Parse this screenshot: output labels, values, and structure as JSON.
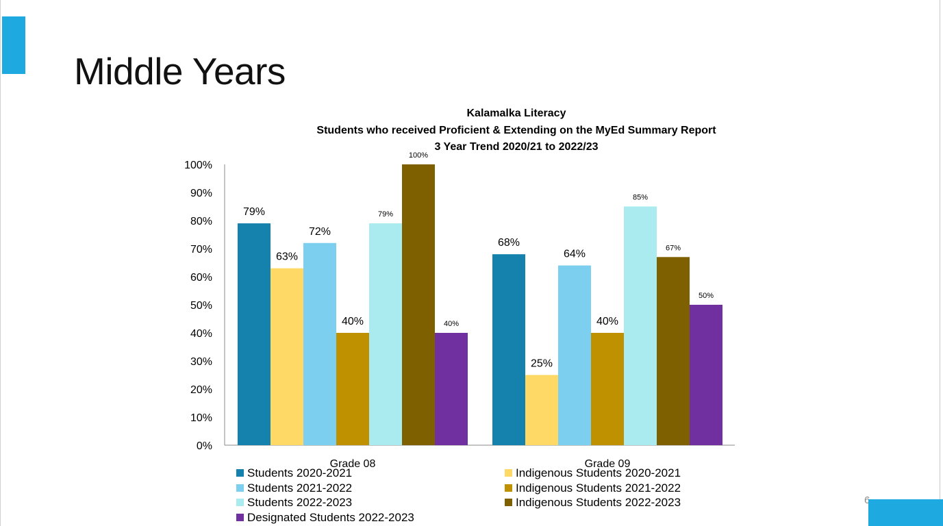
{
  "slide": {
    "title": "Middle Years",
    "page_number": "6",
    "accent_color": "#1fa9e1"
  },
  "chart_data": {
    "type": "bar",
    "title": [
      "Kalamalka Literacy",
      "Students who received Proficient & Extending on the MyEd Summary Report",
      "3 Year Trend 2020/21 to 2022/23"
    ],
    "xlabel": "",
    "ylabel": "",
    "ylim": [
      0,
      100
    ],
    "yticks": [
      "0%",
      "10%",
      "20%",
      "30%",
      "40%",
      "50%",
      "60%",
      "70%",
      "80%",
      "90%",
      "100%"
    ],
    "categories": [
      "Grade 08",
      "Grade 09"
    ],
    "series": [
      {
        "name": "Students 2020-2021",
        "color": "#1582ad",
        "values": [
          79,
          68
        ],
        "labels": [
          "79%",
          "68%"
        ],
        "label_size": "large"
      },
      {
        "name": "Indigenous Students 2020-2021",
        "color": "#fed966",
        "values": [
          63,
          25
        ],
        "labels": [
          "63%",
          "25%"
        ],
        "label_size": "large"
      },
      {
        "name": "Students 2021-2022",
        "color": "#7ccfef",
        "values": [
          72,
          64
        ],
        "labels": [
          "72%",
          "64%"
        ],
        "label_size": "large"
      },
      {
        "name": "Indigenous Students 2021-2022",
        "color": "#bf9000",
        "values": [
          40,
          40
        ],
        "labels": [
          "40%",
          "40%"
        ],
        "label_size": "large"
      },
      {
        "name": "Students 2022-2023",
        "color": "#a9ebef",
        "values": [
          79,
          85
        ],
        "labels": [
          "79%",
          "85%"
        ],
        "label_size": "small"
      },
      {
        "name": "Indigenous Students 2022-2023",
        "color": "#7f6000",
        "values": [
          100,
          67
        ],
        "labels": [
          "100%",
          "67%"
        ],
        "label_size": "small"
      },
      {
        "name": "Designated Students 2022-2023",
        "color": "#7030a0",
        "values": [
          40,
          50
        ],
        "labels": [
          "40%",
          "50%"
        ],
        "label_size": "small"
      }
    ],
    "legend_position": "bottom",
    "grid": false
  }
}
